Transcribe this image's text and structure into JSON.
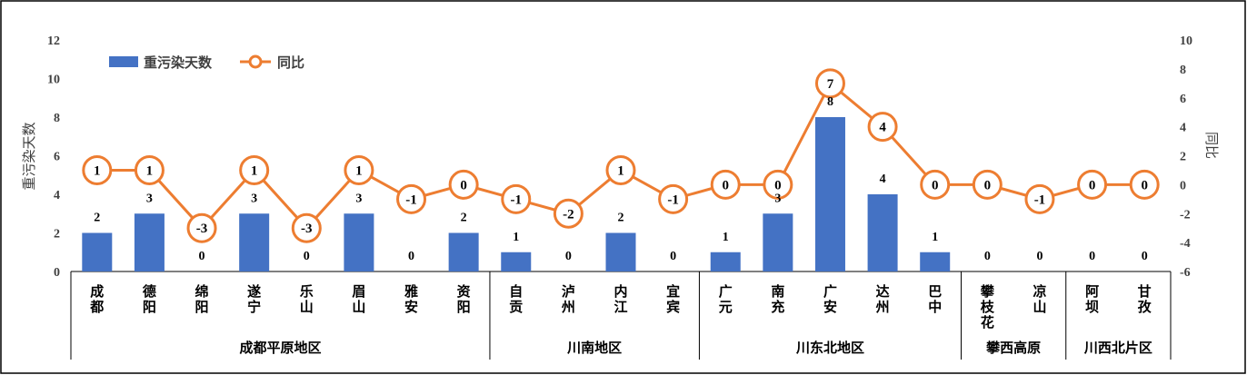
{
  "chart_data": {
    "type": "bar",
    "categories": [
      [
        "成",
        "都"
      ],
      [
        "德",
        "阳"
      ],
      [
        "绵",
        "阳"
      ],
      [
        "遂",
        "宁"
      ],
      [
        "乐",
        "山"
      ],
      [
        "眉",
        "山"
      ],
      [
        "雅",
        "安"
      ],
      [
        "资",
        "阳"
      ],
      [
        "自",
        "贡"
      ],
      [
        "泸",
        "州"
      ],
      [
        "内",
        "江"
      ],
      [
        "宜",
        "宾"
      ],
      [
        "广",
        "元"
      ],
      [
        "南",
        "充"
      ],
      [
        "广",
        "安"
      ],
      [
        "达",
        "州"
      ],
      [
        "巴",
        "中"
      ],
      [
        "攀",
        "枝",
        "花"
      ],
      [
        "凉",
        "山"
      ],
      [
        "阿",
        "坝"
      ],
      [
        "甘",
        "孜"
      ]
    ],
    "groups": [
      {
        "name": "成都平原地区",
        "count": 8
      },
      {
        "name": "川南地区",
        "count": 4
      },
      {
        "name": "川东北地区",
        "count": 5
      },
      {
        "name": "攀西高原",
        "count": 2
      },
      {
        "name": "川西北片区",
        "count": 2
      }
    ],
    "series": [
      {
        "name": "重污染天数",
        "type": "bar",
        "axis": "left",
        "color": "#4472C4",
        "values": [
          2,
          3,
          0,
          3,
          0,
          3,
          0,
          2,
          1,
          0,
          2,
          0,
          1,
          3,
          8,
          4,
          1,
          0,
          0,
          0,
          0
        ]
      },
      {
        "name": "同比",
        "type": "line",
        "axis": "right",
        "color": "#ED7D31",
        "values": [
          1,
          1,
          -3,
          1,
          -3,
          1,
          -1,
          0,
          -1,
          -2,
          1,
          -1,
          0,
          0,
          7,
          4,
          0,
          0,
          -1,
          0,
          0
        ]
      }
    ],
    "y_left": {
      "label": "重污染天数",
      "range": [
        0,
        12
      ],
      "ticks": [
        "0",
        "2",
        "4",
        "6",
        "8",
        "10",
        "12"
      ]
    },
    "y_right": {
      "label": "同比",
      "range": [
        -6,
        10
      ],
      "ticks": [
        "-6",
        "-4",
        "-2",
        "0",
        "2",
        "4",
        "6",
        "8",
        "10"
      ]
    },
    "legend": {
      "placement": "top-left"
    },
    "grid": false
  }
}
